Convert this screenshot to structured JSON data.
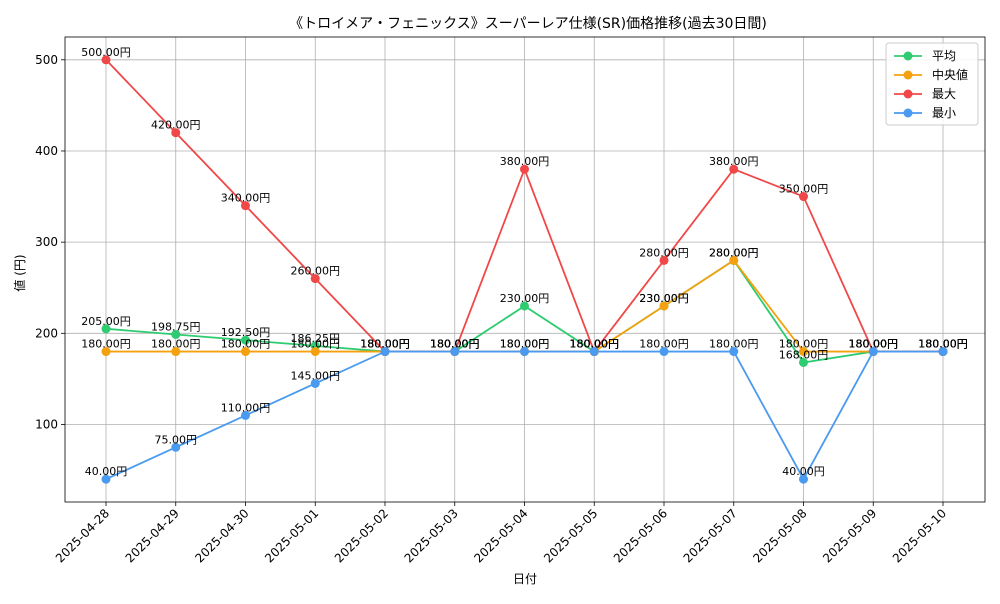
{
  "chart_data": {
    "type": "line",
    "title": "《トロイメア・フェニックス》スーパーレア仕様(SR)価格推移(過去30日間)",
    "xlabel": "日付",
    "ylabel": "値 (円)",
    "categories": [
      "2025-04-28",
      "2025-04-29",
      "2025-04-30",
      "2025-05-01",
      "2025-05-02",
      "2025-05-03",
      "2025-05-04",
      "2025-05-05",
      "2025-05-06",
      "2025-05-07",
      "2025-05-08",
      "2025-05-09",
      "2025-05-10"
    ],
    "yticks": [
      100,
      200,
      300,
      400,
      500
    ],
    "ylim": [
      15,
      525
    ],
    "grid": true,
    "legend_position": "top-right",
    "value_suffix": "円",
    "series": [
      {
        "name": "平均",
        "color": "#2ecc71",
        "values": [
          205,
          198.75,
          192.5,
          186.25,
          180,
          180,
          230,
          180,
          230,
          280,
          168,
          180,
          180
        ]
      },
      {
        "name": "中央値",
        "color": "#f5a00f",
        "values": [
          180,
          180,
          180,
          180,
          180,
          180,
          180,
          180,
          230,
          280,
          180,
          180,
          180
        ]
      },
      {
        "name": "最大",
        "color": "#f04848",
        "values": [
          500,
          420,
          340,
          260,
          180,
          180,
          380,
          180,
          280,
          380,
          350,
          180,
          180
        ]
      },
      {
        "name": "最小",
        "color": "#4a9af0",
        "values": [
          40,
          75,
          110,
          145,
          180,
          180,
          180,
          180,
          180,
          180,
          40,
          180,
          180
        ]
      }
    ]
  }
}
